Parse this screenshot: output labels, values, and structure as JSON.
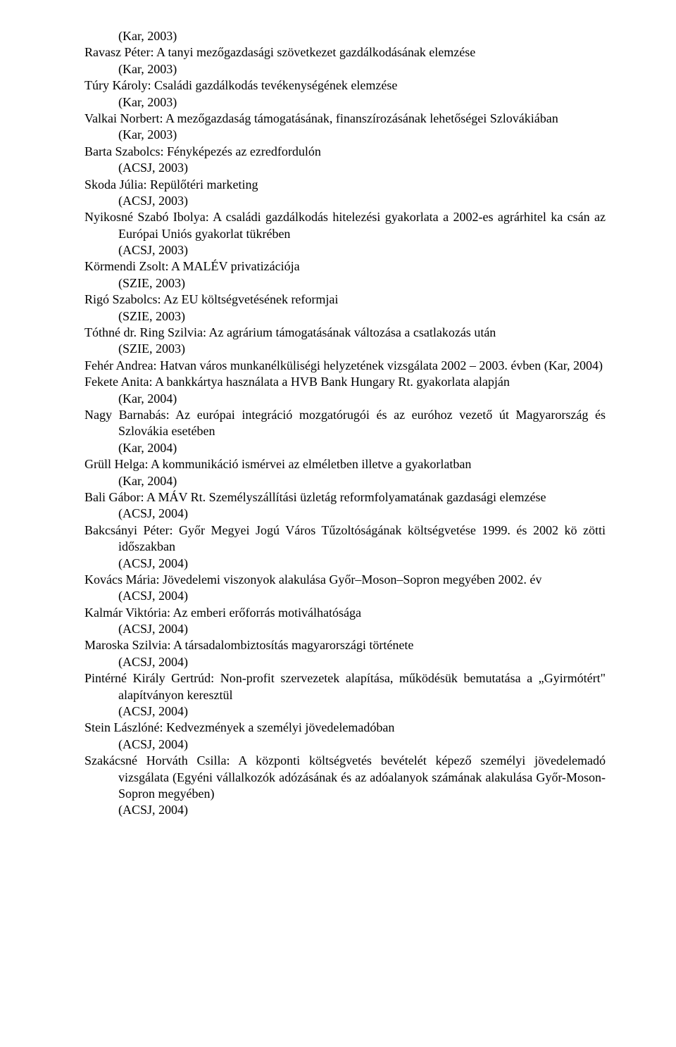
{
  "font": {
    "family": "Times New Roman",
    "size_pt": 14,
    "color": "#000000"
  },
  "background_color": "#ffffff",
  "entries": [
    {
      "source_line": "(Kar, 2003)",
      "indented_source": true
    },
    {
      "title": "Ravasz Péter: A tanyi mezőgazdasági szövetkezet gazdálkodásának elemzése",
      "source": "(Kar, 2003)"
    },
    {
      "title": "Túry Károly: Családi gazdálkodás tevékenységének elemzése",
      "source": "(Kar, 2003)"
    },
    {
      "title": "Valkai Norbert: A mezőgazdaság támogatásának, finanszírozásának lehetőségei Szlovákiában",
      "source": "(Kar, 2003)"
    },
    {
      "title": "Barta Szabolcs: Fényképezés az ezredfordulón",
      "source": "(ACSJ, 2003)"
    },
    {
      "title": "Skoda Júlia: Repülőtéri marketing",
      "source": "(ACSJ, 2003)"
    },
    {
      "title": "Nyikosné Szabó Ibolya: A családi gazdálkodás hitelezési gyakorlata a 2002-es agrárhitel ka csán az Európai Uniós gyakorlat tükrében",
      "source": "(ACSJ, 2003)"
    },
    {
      "title": "Körmendi Zsolt: A MALÉV privatizációja",
      "source": "(SZIE, 2003)"
    },
    {
      "title": "Rigó Szabolcs: Az EU költségvetésének reformjai",
      "source": "(SZIE, 2003)"
    },
    {
      "title": "Tóthné dr. Ring Szilvia: Az agrárium támogatásának változása a csatlakozás után",
      "source": "(SZIE, 2003)"
    },
    {
      "title": "Fehér Andrea: Hatvan város munkanélküliségi helyzetének vizsgálata 2002 – 2003. évben (Kar, 2004)",
      "source": null,
      "justify_wide": true
    },
    {
      "title": "Fekete Anita: A bankkártya használata a HVB Bank Hungary Rt. gyakorlata alapján",
      "source": "(Kar, 2004)"
    },
    {
      "title": "Nagy Barnabás: Az európai integráció mozgatórugói és az euróhoz vezető út Magyarország és Szlovákia esetében",
      "source": "(Kar, 2004)"
    },
    {
      "title": "Grüll Helga: A kommunikáció ismérvei az elméletben illetve a gyakorlatban",
      "source": "(Kar, 2004)"
    },
    {
      "title": "Bali Gábor: A MÁV Rt. Személyszállítási üzletág reformfolyamatának gazdasági elemzése",
      "source": "(ACSJ, 2004)"
    },
    {
      "title": "Bakcsányi Péter: Győr Megyei Jogú Város Tűzoltóságának költségvetése 1999. és 2002 kö zötti időszakban",
      "source": "(ACSJ, 2004)"
    },
    {
      "title": "Kovács Mária: Jövedelemi viszonyok alakulása Győr–Moson–Sopron megyében 2002. év",
      "source": "(ACSJ, 2004)"
    },
    {
      "title": "Kalmár Viktória: Az emberi erőforrás motiválhatósága",
      "source": "(ACSJ, 2004)"
    },
    {
      "title": "Maroska Szilvia: A társadalombiztosítás magyarországi története",
      "source": "(ACSJ, 2004)"
    },
    {
      "title": "Pintérné Király Gertrúd: Non-profit szervezetek alapítása, működésük bemutatása a „Gyirmótért\" alapítványon keresztül",
      "source": "(ACSJ, 2004)"
    },
    {
      "title": "Stein Lászlóné: Kedvezmények a személyi jövedelemadóban",
      "source": "(ACSJ, 2004)"
    },
    {
      "title": "Szakácsné Horváth Csilla: A központi költségvetés bevételét képező személyi jövedelemadó vizsgálata (Egyéni vállalkozók adózásának és az adóalanyok számának alakulása Győr-Moson-Sopron megyében)",
      "source": "(ACSJ, 2004)"
    }
  ]
}
